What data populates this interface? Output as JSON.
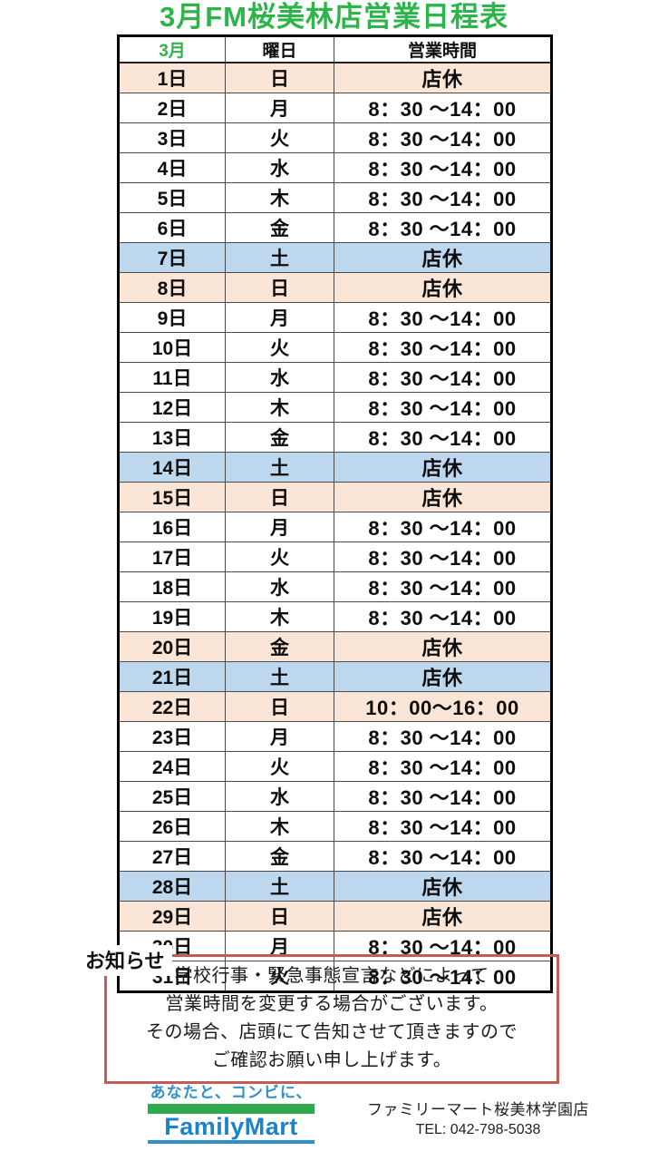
{
  "page": {
    "title": "3月FM桜美林店営業日程表"
  },
  "table": {
    "headers": {
      "month": "3月",
      "weekday": "曜日",
      "hours": "営業時間"
    },
    "rows": [
      {
        "day": "1日",
        "weekday": "日",
        "hours": "店休",
        "bg": "peach"
      },
      {
        "day": "2日",
        "weekday": "月",
        "hours": "8：30 ～14：00",
        "bg": "white"
      },
      {
        "day": "3日",
        "weekday": "火",
        "hours": "8：30 ～14：00",
        "bg": "white"
      },
      {
        "day": "4日",
        "weekday": "水",
        "hours": "8：30 ～14：00",
        "bg": "white"
      },
      {
        "day": "5日",
        "weekday": "木",
        "hours": "8：30 ～14：00",
        "bg": "white"
      },
      {
        "day": "6日",
        "weekday": "金",
        "hours": "8：30 ～14：00",
        "bg": "white"
      },
      {
        "day": "7日",
        "weekday": "土",
        "hours": "店休",
        "bg": "blue"
      },
      {
        "day": "8日",
        "weekday": "日",
        "hours": "店休",
        "bg": "peach"
      },
      {
        "day": "9日",
        "weekday": "月",
        "hours": "8：30 ～14：00",
        "bg": "white"
      },
      {
        "day": "10日",
        "weekday": "火",
        "hours": "8：30 ～14：00",
        "bg": "white"
      },
      {
        "day": "11日",
        "weekday": "水",
        "hours": "8：30 ～14：00",
        "bg": "white"
      },
      {
        "day": "12日",
        "weekday": "木",
        "hours": "8：30 ～14：00",
        "bg": "white"
      },
      {
        "day": "13日",
        "weekday": "金",
        "hours": "8：30 ～14：00",
        "bg": "white"
      },
      {
        "day": "14日",
        "weekday": "土",
        "hours": "店休",
        "bg": "blue"
      },
      {
        "day": "15日",
        "weekday": "日",
        "hours": "店休",
        "bg": "peach"
      },
      {
        "day": "16日",
        "weekday": "月",
        "hours": "8：30 ～14：00",
        "bg": "white"
      },
      {
        "day": "17日",
        "weekday": "火",
        "hours": "8：30 ～14：00",
        "bg": "white"
      },
      {
        "day": "18日",
        "weekday": "水",
        "hours": "8：30 ～14：00",
        "bg": "white"
      },
      {
        "day": "19日",
        "weekday": "木",
        "hours": "8：30 ～14：00",
        "bg": "white"
      },
      {
        "day": "20日",
        "weekday": "金",
        "hours": "店休",
        "bg": "peach"
      },
      {
        "day": "21日",
        "weekday": "土",
        "hours": "店休",
        "bg": "blue"
      },
      {
        "day": "22日",
        "weekday": "日",
        "hours": "10：00～16：00",
        "bg": "peach"
      },
      {
        "day": "23日",
        "weekday": "月",
        "hours": "8：30 ～14：00",
        "bg": "white"
      },
      {
        "day": "24日",
        "weekday": "火",
        "hours": "8：30 ～14：00",
        "bg": "white"
      },
      {
        "day": "25日",
        "weekday": "水",
        "hours": "8：30 ～14：00",
        "bg": "white"
      },
      {
        "day": "26日",
        "weekday": "木",
        "hours": "8：30 ～14：00",
        "bg": "white"
      },
      {
        "day": "27日",
        "weekday": "金",
        "hours": "8：30 ～14：00",
        "bg": "white"
      },
      {
        "day": "28日",
        "weekday": "土",
        "hours": "店休",
        "bg": "blue"
      },
      {
        "day": "29日",
        "weekday": "日",
        "hours": "店休",
        "bg": "peach"
      },
      {
        "day": "30日",
        "weekday": "月",
        "hours": "8：30 ～14：00",
        "bg": "white"
      },
      {
        "day": "31日",
        "weekday": "火",
        "hours": "8：30 ～14：00",
        "bg": "white"
      }
    ]
  },
  "notice": {
    "label": "お知らせ",
    "lines": [
      "学校行事・緊急事態宣言などによって",
      "営業時間を変更する場合がございます。",
      "その場合、店頭にて告知させて頂きますので",
      "ご確認お願い申し上げます。"
    ]
  },
  "footer": {
    "tagline": "あなたと、コンビに、",
    "brand": "FamilyMart",
    "store_name": "ファミリーマート桜美林学園店",
    "tel": "TEL: 042-798-5038"
  },
  "colors": {
    "title_green": "#2db44b",
    "closed_sunday_bg": "#fbe5d6",
    "closed_saturday_bg": "#bdd7ee",
    "notice_border_red": "#c55a5a",
    "brand_blue": "#1d82c8",
    "tagline_blue": "#2e8fcb",
    "brand_green": "#2faa4f"
  }
}
